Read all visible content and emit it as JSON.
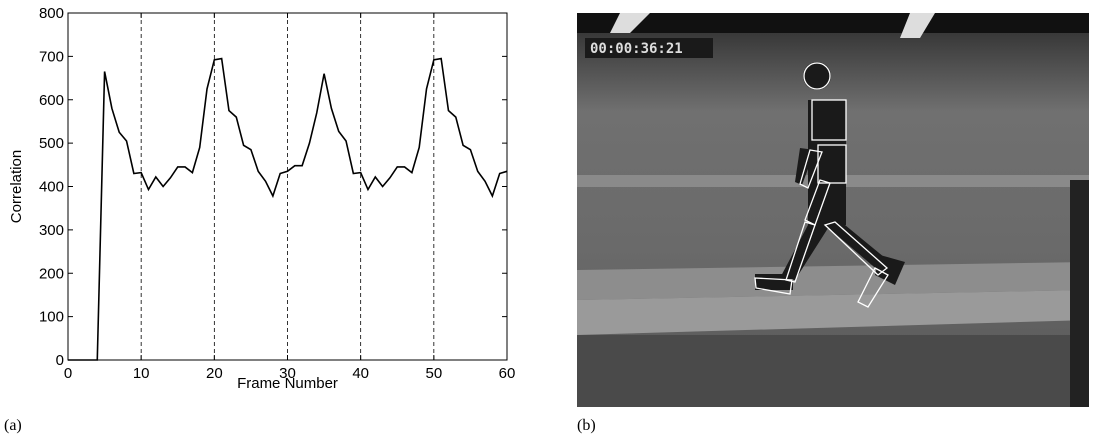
{
  "chart_data": {
    "type": "line",
    "xlabel": "Frame Number",
    "ylabel": "Correlation",
    "x": [
      0,
      1,
      2,
      3,
      4,
      5,
      6,
      7,
      8,
      9,
      10,
      11,
      12,
      13,
      14,
      15,
      16,
      17,
      18,
      19,
      20,
      21,
      22,
      23,
      24,
      25,
      26,
      27,
      28,
      29,
      30,
      31,
      32,
      33,
      34,
      35,
      36,
      37,
      38,
      39,
      40,
      41,
      42,
      43,
      44,
      45,
      46,
      47,
      48,
      49,
      50,
      51,
      52,
      53,
      54,
      55,
      56,
      57,
      58,
      59,
      60
    ],
    "series": [
      {
        "color": "#000000",
        "values": [
          0,
          0,
          0,
          0,
          0,
          665,
          580,
          525,
          505,
          430,
          432,
          393,
          422,
          400,
          420,
          445,
          445,
          432,
          490,
          625,
          692,
          695,
          575,
          560,
          495,
          485,
          435,
          412,
          378,
          430,
          435,
          448,
          448,
          500,
          570,
          660,
          580,
          527,
          505,
          430,
          432,
          393,
          422,
          400,
          420,
          445,
          445,
          432,
          490,
          625,
          692,
          695,
          575,
          560,
          495,
          485,
          435,
          412,
          378,
          430,
          435
        ]
      }
    ],
    "vlines": [
      10,
      20,
      30,
      40,
      50
    ],
    "xlim": [
      0,
      60
    ],
    "xticks": [
      0,
      10,
      20,
      30,
      40,
      50,
      60
    ],
    "ylim": [
      0,
      800
    ],
    "yticks": [
      0,
      100,
      200,
      300,
      400,
      500,
      600,
      700,
      800
    ]
  },
  "panel_labels": [
    "(a)",
    "(b)"
  ],
  "image": {
    "timestamp": "00:00:36:21"
  }
}
